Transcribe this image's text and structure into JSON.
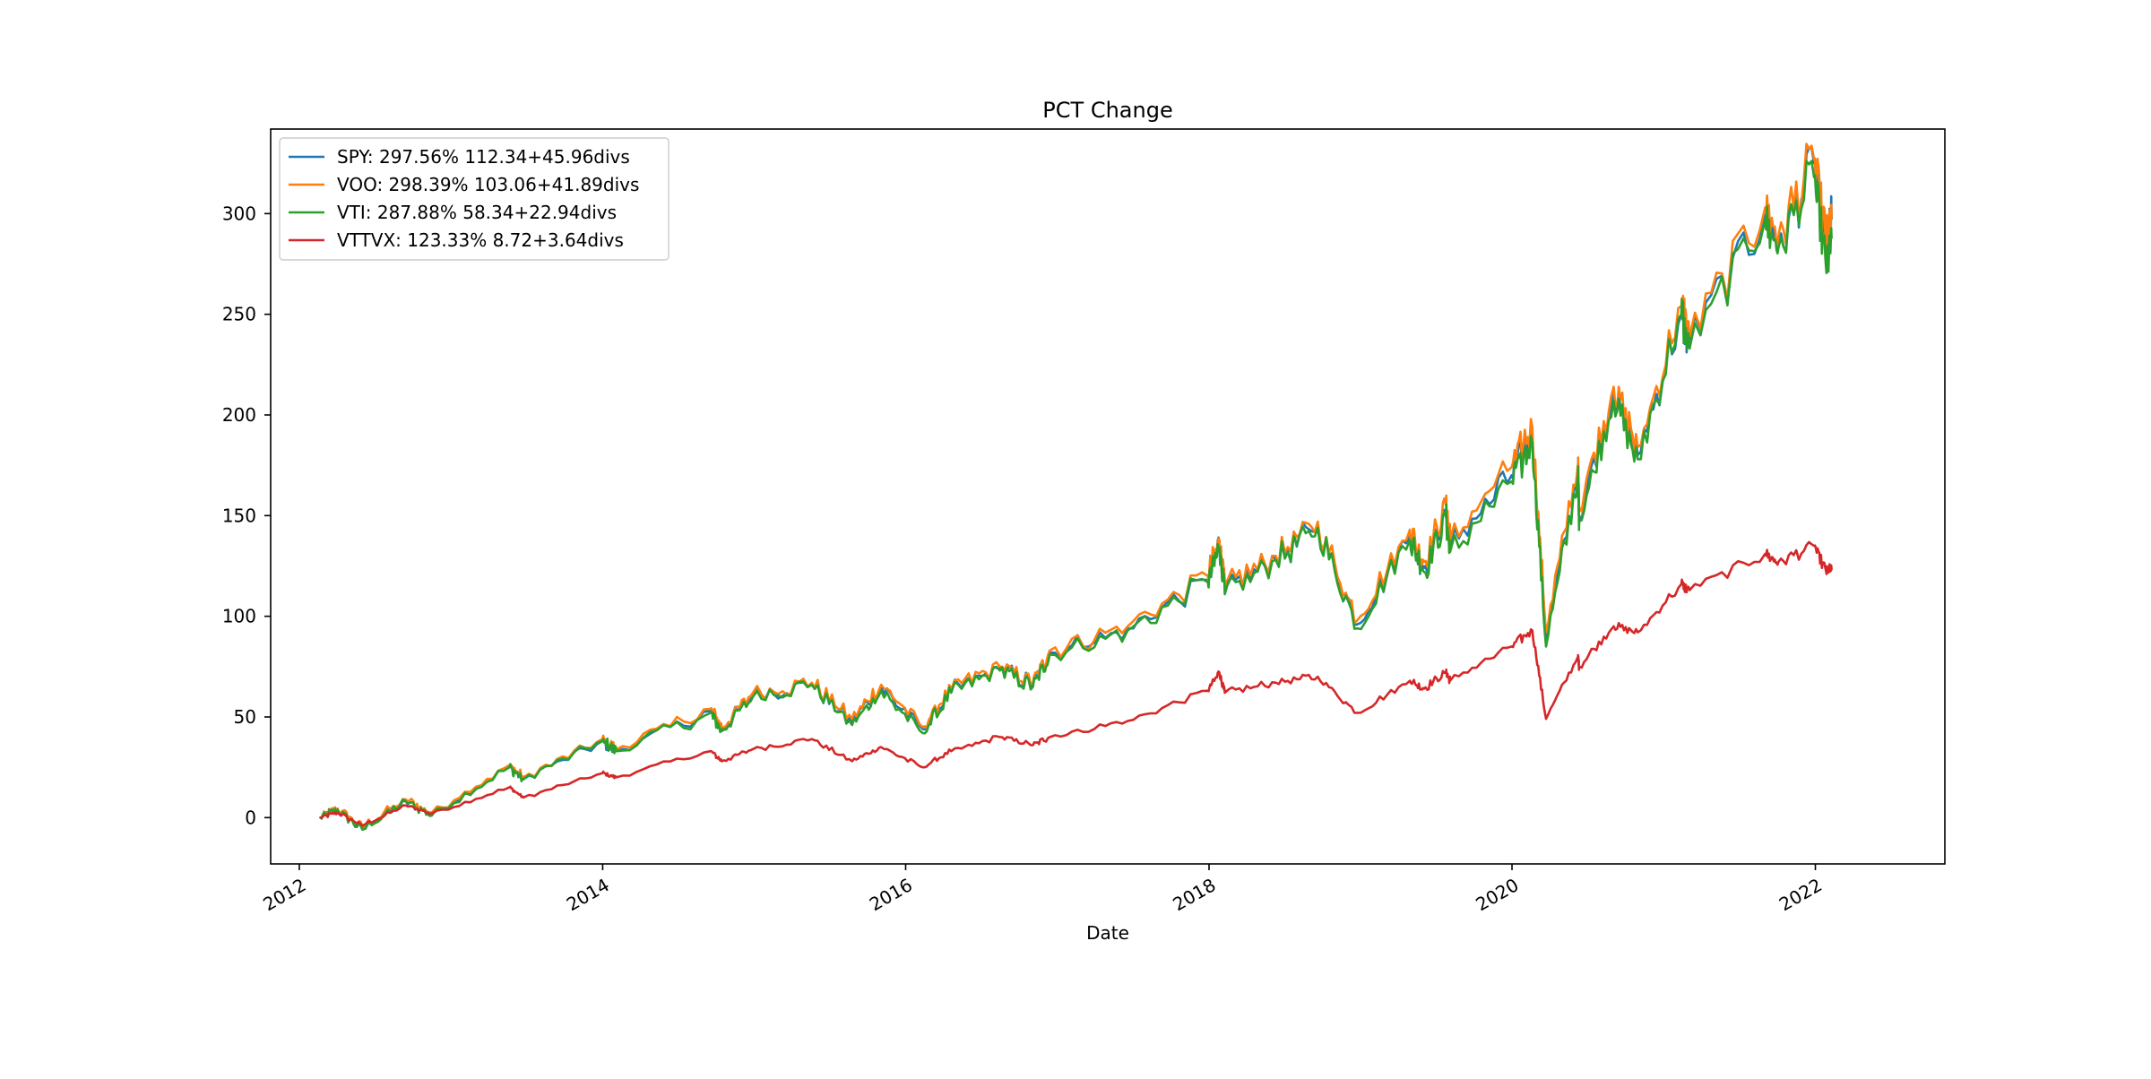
{
  "chart_data": {
    "type": "line",
    "title": "PCT Change",
    "xlabel": "Date",
    "ylabel": "",
    "xlim": [
      "2011-10-24",
      "2022-11-09"
    ],
    "ylim": [
      -23,
      342
    ],
    "x_ticks": [
      "2012",
      "2014",
      "2016",
      "2018",
      "2020",
      "2022"
    ],
    "y_ticks": [
      0,
      50,
      100,
      150,
      200,
      250,
      300
    ],
    "grid": false,
    "legend_position": "top-left",
    "series": [
      {
        "name": "SPY: 297.56% 112.34+45.96divs",
        "color": "#1f77b4",
        "points": [
          [
            "2012-02-21",
            0
          ],
          [
            "2012-04-02",
            4
          ],
          [
            "2012-06-01",
            -5
          ],
          [
            "2012-09-14",
            8
          ],
          [
            "2012-11-15",
            2
          ],
          [
            "2013-05-21",
            25
          ],
          [
            "2013-06-24",
            19
          ],
          [
            "2013-12-31",
            38
          ],
          [
            "2014-02-03",
            33
          ],
          [
            "2014-09-18",
            53
          ],
          [
            "2014-10-15",
            44
          ],
          [
            "2014-12-29",
            61
          ],
          [
            "2015-05-20",
            66
          ],
          [
            "2015-08-25",
            48
          ],
          [
            "2015-11-03",
            65
          ],
          [
            "2016-02-11",
            44
          ],
          [
            "2016-04-20",
            63
          ],
          [
            "2016-08-15",
            74
          ],
          [
            "2016-11-03",
            66
          ],
          [
            "2016-12-13",
            82
          ],
          [
            "2017-06-19",
            94
          ],
          [
            "2017-12-29",
            118
          ],
          [
            "2018-01-26",
            136
          ],
          [
            "2018-02-08",
            113
          ],
          [
            "2018-06-11",
            128
          ],
          [
            "2018-09-20",
            145
          ],
          [
            "2018-12-24",
            96
          ],
          [
            "2019-04-30",
            140
          ],
          [
            "2019-06-03",
            124
          ],
          [
            "2019-07-26",
            151
          ],
          [
            "2019-08-05",
            135
          ],
          [
            "2019-12-31",
            170
          ],
          [
            "2020-02-19",
            191
          ],
          [
            "2020-03-23",
            89
          ],
          [
            "2020-06-08",
            172
          ],
          [
            "2020-06-11",
            150
          ],
          [
            "2020-09-02",
            210
          ],
          [
            "2020-10-30",
            180
          ],
          [
            "2021-02-12",
            250
          ],
          [
            "2021-03-04",
            235
          ],
          [
            "2021-09-02",
            300
          ],
          [
            "2021-10-04",
            285
          ],
          [
            "2021-12-29",
            325
          ],
          [
            "2022-01-27",
            280
          ],
          [
            "2022-02-09",
            297.56
          ]
        ]
      },
      {
        "name": "VOO: 298.39% 103.06+41.89divs",
        "color": "#ff7f0e",
        "points": [
          [
            "2012-02-21",
            0
          ],
          [
            "2012-04-02",
            4.5
          ],
          [
            "2012-06-01",
            -4.5
          ],
          [
            "2012-09-14",
            9
          ],
          [
            "2012-11-15",
            2.5
          ],
          [
            "2013-05-21",
            26
          ],
          [
            "2013-06-24",
            20
          ],
          [
            "2013-12-31",
            39
          ],
          [
            "2014-02-03",
            34
          ],
          [
            "2014-09-18",
            54
          ],
          [
            "2014-10-15",
            45
          ],
          [
            "2014-12-29",
            62
          ],
          [
            "2015-05-20",
            67
          ],
          [
            "2015-08-25",
            49
          ],
          [
            "2015-11-03",
            66
          ],
          [
            "2016-02-11",
            45
          ],
          [
            "2016-04-20",
            64
          ],
          [
            "2016-08-15",
            75
          ],
          [
            "2016-11-03",
            67
          ],
          [
            "2016-12-13",
            83
          ],
          [
            "2017-06-19",
            95
          ],
          [
            "2017-12-29",
            120
          ],
          [
            "2018-01-26",
            138
          ],
          [
            "2018-02-08",
            115
          ],
          [
            "2018-06-11",
            130
          ],
          [
            "2018-09-20",
            147
          ],
          [
            "2018-12-24",
            98
          ],
          [
            "2019-04-30",
            143
          ],
          [
            "2019-06-03",
            127
          ],
          [
            "2019-07-26",
            155
          ],
          [
            "2019-08-05",
            138
          ],
          [
            "2019-12-31",
            174
          ],
          [
            "2020-02-19",
            194
          ],
          [
            "2020-03-23",
            92
          ],
          [
            "2020-06-08",
            176
          ],
          [
            "2020-06-11",
            154
          ],
          [
            "2020-09-02",
            214
          ],
          [
            "2020-10-30",
            184
          ],
          [
            "2021-02-12",
            254
          ],
          [
            "2021-03-04",
            239
          ],
          [
            "2021-09-02",
            303
          ],
          [
            "2021-10-04",
            289
          ],
          [
            "2021-12-29",
            327
          ],
          [
            "2022-01-27",
            285
          ],
          [
            "2022-02-09",
            298.39
          ]
        ]
      },
      {
        "name": "VTI: 287.88% 58.34+22.94divs",
        "color": "#2ca02c",
        "points": [
          [
            "2012-02-21",
            0
          ],
          [
            "2012-04-02",
            4
          ],
          [
            "2012-06-01",
            -6
          ],
          [
            "2012-09-14",
            8
          ],
          [
            "2012-11-15",
            1
          ],
          [
            "2013-05-21",
            25
          ],
          [
            "2013-06-24",
            19
          ],
          [
            "2013-12-31",
            38
          ],
          [
            "2014-02-03",
            33
          ],
          [
            "2014-09-18",
            52
          ],
          [
            "2014-10-15",
            43
          ],
          [
            "2014-12-29",
            60
          ],
          [
            "2015-05-20",
            66
          ],
          [
            "2015-08-25",
            46
          ],
          [
            "2015-11-03",
            63
          ],
          [
            "2016-02-11",
            42
          ],
          [
            "2016-04-20",
            62
          ],
          [
            "2016-08-15",
            73
          ],
          [
            "2016-11-03",
            65
          ],
          [
            "2016-12-13",
            81
          ],
          [
            "2017-06-19",
            93
          ],
          [
            "2017-12-29",
            117
          ],
          [
            "2018-01-26",
            134
          ],
          [
            "2018-02-08",
            111
          ],
          [
            "2018-06-11",
            128
          ],
          [
            "2018-09-20",
            144
          ],
          [
            "2018-12-24",
            94
          ],
          [
            "2019-04-30",
            138
          ],
          [
            "2019-06-03",
            122
          ],
          [
            "2019-07-26",
            149
          ],
          [
            "2019-08-05",
            132
          ],
          [
            "2019-12-31",
            167
          ],
          [
            "2020-02-19",
            186
          ],
          [
            "2020-03-23",
            85
          ],
          [
            "2020-06-08",
            170
          ],
          [
            "2020-06-11",
            147
          ],
          [
            "2020-09-02",
            207
          ],
          [
            "2020-10-30",
            178
          ],
          [
            "2021-02-12",
            250
          ],
          [
            "2021-03-04",
            233
          ],
          [
            "2021-09-02",
            297
          ],
          [
            "2021-10-04",
            283
          ],
          [
            "2021-12-29",
            318
          ],
          [
            "2022-01-27",
            272
          ],
          [
            "2022-02-09",
            287.88
          ]
        ]
      },
      {
        "name": "VTTVX: 123.33% 8.72+3.64divs",
        "color": "#d62728",
        "points": [
          [
            "2012-02-21",
            0
          ],
          [
            "2012-04-02",
            2.5
          ],
          [
            "2012-06-01",
            -4
          ],
          [
            "2012-09-14",
            6
          ],
          [
            "2012-11-15",
            2
          ],
          [
            "2013-05-21",
            15
          ],
          [
            "2013-06-24",
            10
          ],
          [
            "2013-12-31",
            22
          ],
          [
            "2014-02-03",
            20
          ],
          [
            "2014-09-18",
            33
          ],
          [
            "2014-10-15",
            28
          ],
          [
            "2014-12-29",
            34
          ],
          [
            "2015-05-20",
            39
          ],
          [
            "2015-08-25",
            28
          ],
          [
            "2015-11-03",
            35
          ],
          [
            "2016-02-11",
            25
          ],
          [
            "2016-04-20",
            33
          ],
          [
            "2016-08-15",
            40
          ],
          [
            "2016-11-03",
            36
          ],
          [
            "2016-12-13",
            40
          ],
          [
            "2017-06-19",
            48
          ],
          [
            "2017-12-29",
            63
          ],
          [
            "2018-01-26",
            72
          ],
          [
            "2018-02-08",
            62
          ],
          [
            "2018-06-11",
            67
          ],
          [
            "2018-09-20",
            70
          ],
          [
            "2018-12-24",
            52
          ],
          [
            "2019-04-30",
            68
          ],
          [
            "2019-06-03",
            64
          ],
          [
            "2019-07-26",
            72
          ],
          [
            "2019-08-05",
            68
          ],
          [
            "2019-12-31",
            85
          ],
          [
            "2020-02-19",
            93
          ],
          [
            "2020-03-23",
            49
          ],
          [
            "2020-06-08",
            80
          ],
          [
            "2020-06-11",
            75
          ],
          [
            "2020-09-02",
            95
          ],
          [
            "2020-10-30",
            92
          ],
          [
            "2021-02-12",
            116
          ],
          [
            "2021-03-04",
            113
          ],
          [
            "2021-09-02",
            131
          ],
          [
            "2021-10-04",
            127
          ],
          [
            "2021-12-29",
            135
          ],
          [
            "2022-01-27",
            122
          ],
          [
            "2022-02-09",
            123.33
          ]
        ]
      }
    ]
  }
}
